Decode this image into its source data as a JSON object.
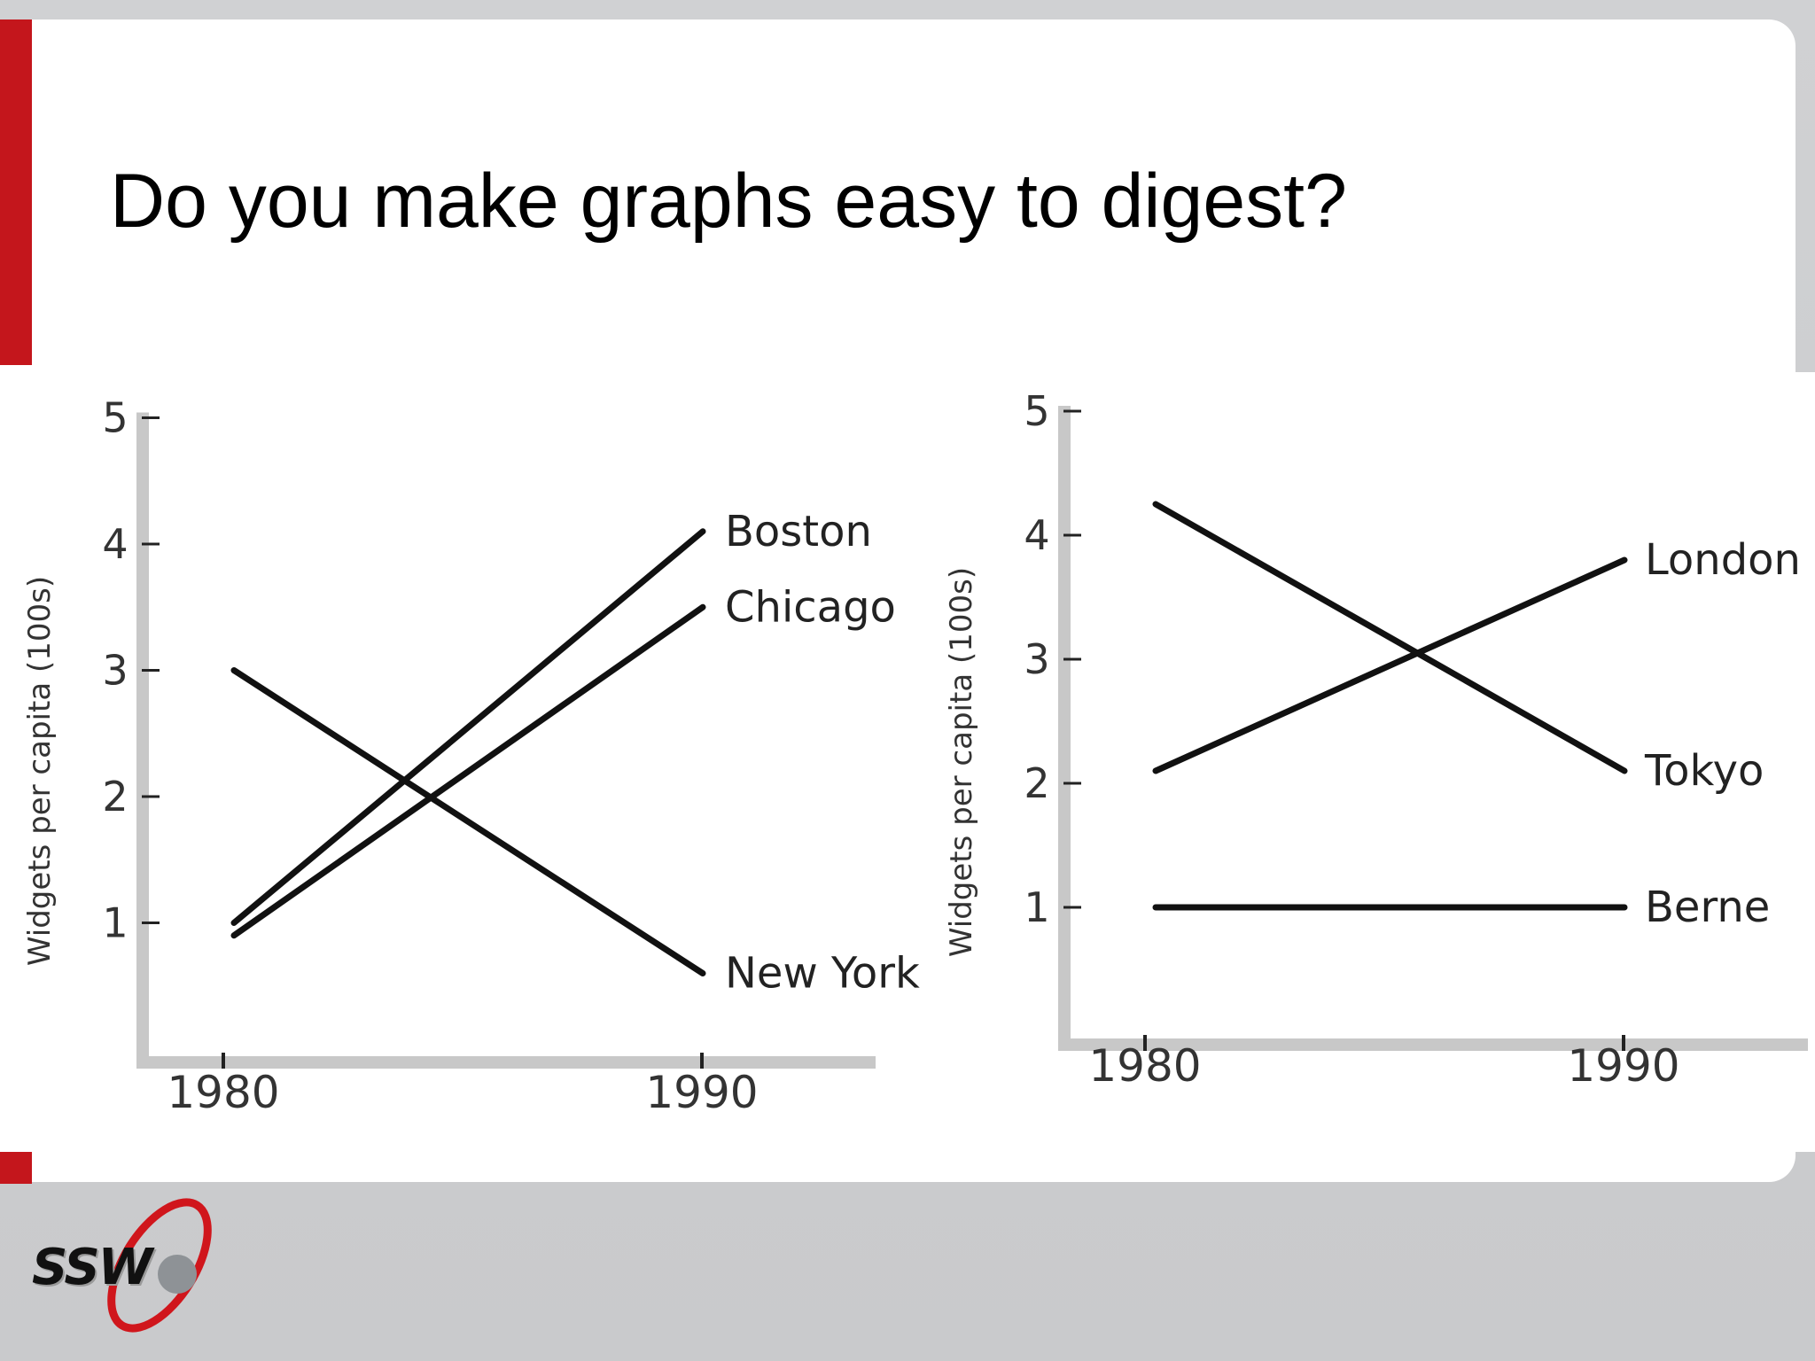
{
  "slide": {
    "title": "Do you make graphs easy to digest?",
    "accent_color": "#c4161c",
    "logo_text": "SSW"
  },
  "chart_data": [
    {
      "type": "line",
      "title": "",
      "xlabel": "",
      "ylabel": "Widgets per capita (100s)",
      "x": [
        "1980",
        "1990"
      ],
      "y_ticks": [
        "1",
        "2",
        "3",
        "4",
        "5"
      ],
      "ylim": [
        0,
        5
      ],
      "series": [
        {
          "name": "Boston",
          "values": [
            1.0,
            4.1
          ]
        },
        {
          "name": "Chicago",
          "values": [
            0.9,
            3.5
          ]
        },
        {
          "name": "New York",
          "values": [
            3.0,
            0.6
          ]
        }
      ]
    },
    {
      "type": "line",
      "title": "",
      "xlabel": "",
      "ylabel": "Widgets per capita (100s)",
      "x": [
        "1980",
        "1990"
      ],
      "y_ticks": [
        "1",
        "2",
        "3",
        "4",
        "5"
      ],
      "ylim": [
        0,
        5
      ],
      "series": [
        {
          "name": "London",
          "values": [
            2.1,
            3.8
          ]
        },
        {
          "name": "Tokyo",
          "values": [
            4.25,
            2.1
          ]
        },
        {
          "name": "Berne",
          "values": [
            1.0,
            1.0
          ]
        }
      ]
    }
  ]
}
